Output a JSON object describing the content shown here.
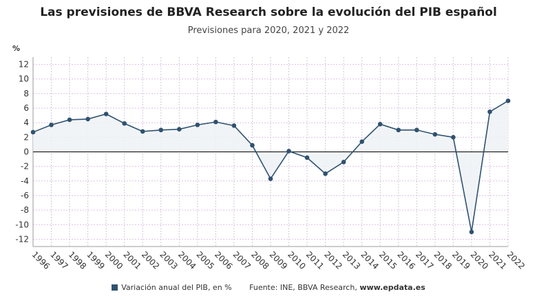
{
  "title": "Las previsiones de BBVA Research sobre la evolución del PIB español",
  "subtitle": "Previsiones para 2020, 2021 y 2022",
  "legend_label": "Variación anual del PIB, en %",
  "source_prefix": "Fuente: INE, BBVA Research,",
  "source_site": "www.epdata.es",
  "colors": {
    "line": "#2f5270",
    "grid": "#d9c2df",
    "fill": "#eef2f6"
  },
  "chart_data": {
    "type": "area",
    "title": "Las previsiones de BBVA Research sobre la evolución del PIB español",
    "subtitle": "Previsiones para 2020, 2021 y 2022",
    "ylabel": "%",
    "xlabel": "",
    "ylim": [
      -13,
      13
    ],
    "yticks": [
      12,
      10,
      8,
      6,
      4,
      2,
      0,
      -2,
      -4,
      -6,
      -8,
      -10,
      -12
    ],
    "grid": true,
    "legend_position": "bottom",
    "categories": [
      "1996",
      "1997",
      "1998",
      "1999",
      "2000",
      "2001",
      "2002",
      "2003",
      "2004",
      "2005",
      "2006",
      "2007",
      "2008",
      "2009",
      "2010",
      "2011",
      "2012",
      "2013",
      "2014",
      "2015",
      "2016",
      "2017",
      "2018",
      "2019",
      "2020",
      "2021",
      "2022"
    ],
    "series": [
      {
        "name": "Variación anual del PIB, en %",
        "values": [
          2.7,
          3.7,
          4.4,
          4.5,
          5.2,
          3.9,
          2.8,
          3.0,
          3.1,
          3.7,
          4.1,
          3.6,
          0.9,
          -3.7,
          0.1,
          -0.8,
          -3.0,
          -1.4,
          1.4,
          3.8,
          3.0,
          3.0,
          2.4,
          2.0,
          -11.0,
          5.5,
          7.0
        ]
      }
    ]
  }
}
